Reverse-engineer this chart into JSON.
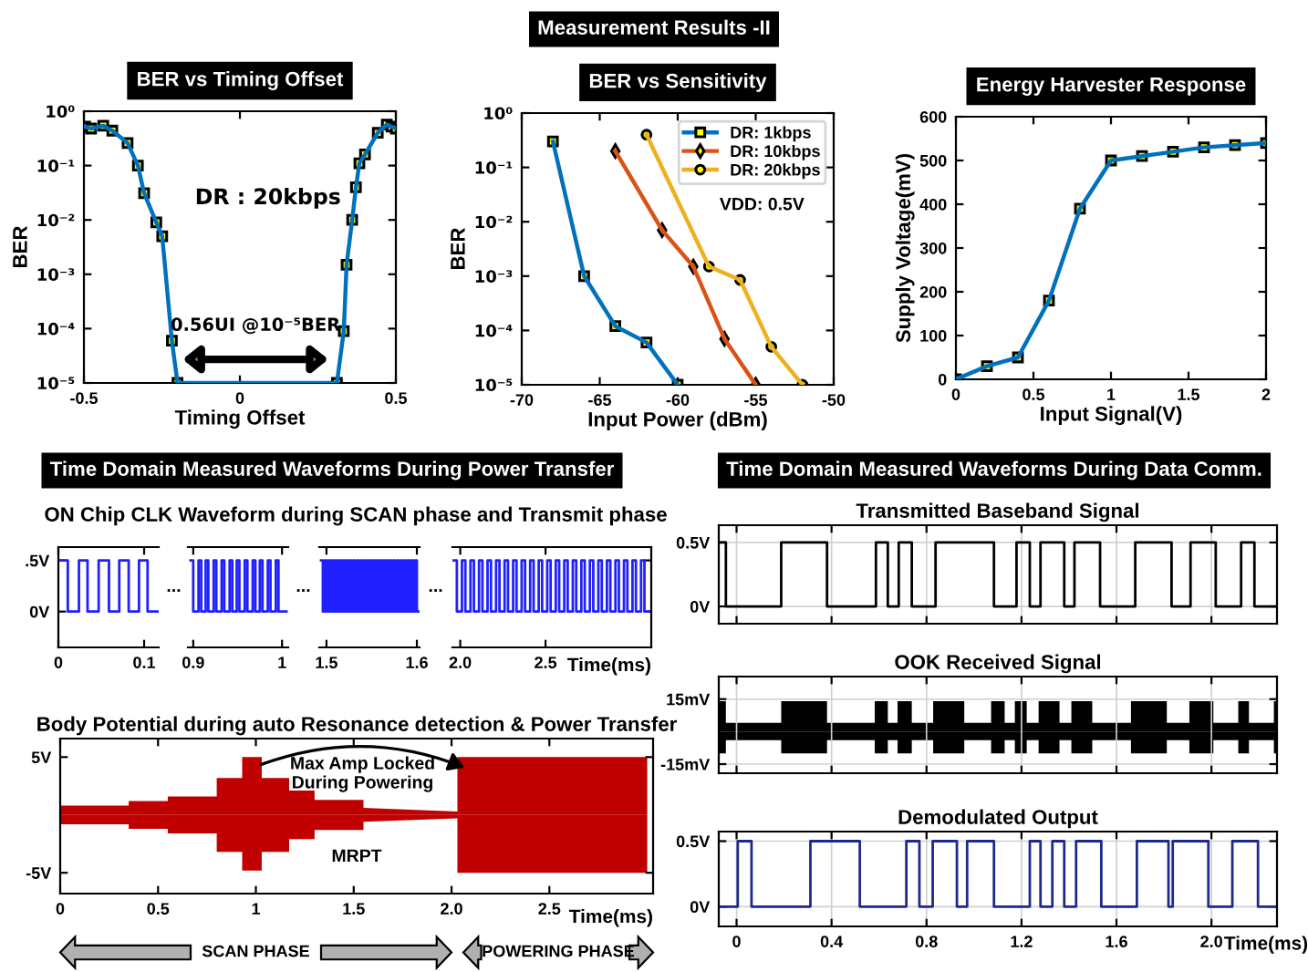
{
  "chart_data": [
    {
      "type": "other",
      "annotations": [
        "Measurement Results -II",
        "Time Domain Measured Waveforms During Power Transfer",
        "Time Domain Measured Waveforms During Data Comm."
      ]
    },
    {
      "type": "line",
      "title": "BER vs Timing Offset",
      "xlabel": "Timing Offset",
      "ylabel": "BER",
      "log": "y",
      "marker": "square",
      "x": [
        -0.496,
        -0.477,
        -0.438,
        -0.409,
        -0.36,
        -0.327,
        -0.307,
        -0.268,
        -0.249,
        -0.218,
        -0.2,
        0.311,
        0.333,
        0.342,
        0.36,
        0.372,
        0.383,
        0.401,
        0.442,
        0.471,
        0.486,
        0.5
      ],
      "series": [
        {
          "color": "#0072bd",
          "values": [
            0.52,
            0.48,
            0.54,
            0.44,
            0.26,
            0.1,
            0.031,
            0.009,
            0.005,
            6e-05,
            1e-05,
            1e-05,
            9e-05,
            0.0015,
            0.01,
            0.04,
            0.11,
            0.16,
            0.4,
            0.57,
            0.52,
            0.48
          ]
        }
      ],
      "xlim": [
        -0.5,
        0.5
      ],
      "xticks": [
        -0.5,
        0,
        0.5
      ],
      "ylim": [
        1e-05,
        1
      ],
      "yticks": [
        {
          "value": 1,
          "label": "10⁰"
        },
        {
          "value": 0.1,
          "label": "10⁻¹"
        },
        {
          "value": 0.01,
          "label": "10⁻²"
        },
        {
          "value": 0.001,
          "label": "10⁻³"
        },
        {
          "value": 0.0001,
          "label": "10⁻⁴"
        },
        {
          "value": 1e-05,
          "label": "10⁻⁵"
        }
      ],
      "annotations": [
        "DR : 20kbps",
        "0.56UI @10⁻⁵BER"
      ]
    },
    {
      "type": "line",
      "title": "BER vs Sensitivity",
      "xlabel": "Input Power (dBm)",
      "ylabel": "BER",
      "log": "y",
      "legend": "top right",
      "series": [
        {
          "name": "DR: 1kbps",
          "color": "#0072bd",
          "marker": "square",
          "x": [
            -68,
            -66,
            -64,
            -62,
            -60
          ],
          "values": [
            0.3,
            0.001,
            0.00012,
            6e-05,
            1e-05
          ]
        },
        {
          "name": "DR: 10kbps",
          "color": "#d95319",
          "marker": "diamond",
          "x": [
            -64,
            -61,
            -59,
            -57,
            -55
          ],
          "values": [
            0.2,
            0.007,
            0.0015,
            7e-05,
            1e-05
          ]
        },
        {
          "name": "DR: 20kbps",
          "color": "#edb120",
          "marker": "circle",
          "x": [
            -62,
            -58,
            -56,
            -54,
            -52
          ],
          "values": [
            0.4,
            0.0015,
            0.00085,
            5e-05,
            1e-05
          ]
        }
      ],
      "xlim": [
        -70,
        -50
      ],
      "xticks": [
        -70,
        -65,
        -60,
        -55,
        -50
      ],
      "ylim": [
        1e-05,
        1
      ],
      "yticks": [
        {
          "value": 1,
          "label": "10⁰"
        },
        {
          "value": 0.1,
          "label": "10⁻¹"
        },
        {
          "value": 0.01,
          "label": "10⁻²"
        },
        {
          "value": 0.001,
          "label": "10⁻³"
        },
        {
          "value": 0.0001,
          "label": "10⁻⁴"
        },
        {
          "value": 1e-05,
          "label": "10⁻⁵"
        }
      ],
      "annotations": [
        "VDD: 0.5V"
      ]
    },
    {
      "type": "line",
      "title": "Energy Harvester Response",
      "xlabel": "Input Signal(V)",
      "ylabel": "Supply Voltage(mV)",
      "marker": "square",
      "x": [
        0,
        0.2,
        0.4,
        0.6,
        0.8,
        1,
        1.2,
        1.4,
        1.6,
        1.8,
        2
      ],
      "series": [
        {
          "color": "#0072bd",
          "values": [
            0,
            30,
            50,
            180,
            390,
            500,
            510,
            520,
            530,
            535,
            540
          ]
        }
      ],
      "xlim": [
        0,
        2
      ],
      "xticks": [
        0,
        0.5,
        1,
        1.5,
        2
      ],
      "ylim": [
        0,
        600
      ],
      "yticks": [
        0,
        100,
        200,
        300,
        400,
        500,
        600
      ]
    },
    {
      "type": "step",
      "title": "ON Chip CLK Waveform during SCAN phase and Transmit phase",
      "x": [
        0,
        0.011,
        0.024,
        0.034,
        0.047,
        0.059,
        0.071,
        0.082,
        0.094,
        0.104,
        0.116
      ],
      "series": [
        {
          "color": "#2020ff",
          "values": [
            0.5,
            0,
            0.5,
            0,
            0.5,
            0,
            0.5,
            0,
            0.5,
            0,
            0
          ]
        }
      ],
      "xlim": [
        0,
        0.117
      ],
      "xticks": [
        0,
        0.1
      ],
      "ylim": [
        -0.35,
        0.63
      ],
      "yticks": [
        {
          "value": 0.5,
          "label": ".5V"
        },
        {
          "value": 0,
          "label": "0V"
        }
      ],
      "annotations": [
        "..."
      ]
    },
    {
      "type": "step",
      "tick_labels": "x",
      "x": [
        0.897,
        0.9,
        0.906,
        0.909,
        0.914,
        0.917,
        0.923,
        0.926,
        0.932,
        0.935,
        0.941,
        0.944,
        0.949,
        0.952,
        0.958,
        0.961,
        0.967,
        0.97,
        0.975,
        0.978,
        0.984,
        0.987,
        0.993,
        0.996,
        1.005
      ],
      "series": [
        {
          "color": "#2020ff",
          "values": [
            0.5,
            0,
            0.5,
            0,
            0.5,
            0,
            0.5,
            0,
            0.5,
            0,
            0.5,
            0,
            0.5,
            0,
            0.5,
            0,
            0.5,
            0,
            0.5,
            0,
            0.5,
            0,
            0.5,
            0,
            0
          ]
        }
      ],
      "xlim": [
        0.894,
        1.007
      ],
      "xticks": [
        0.9,
        1
      ],
      "ylim": [
        -0.35,
        0.63
      ],
      "annotations": [
        "..."
      ]
    },
    {
      "type": "step",
      "tick_labels": "x",
      "x": [
        1.494,
        1.496,
        1.498,
        1.5,
        1.502,
        1.504,
        1.506,
        1.508,
        1.51,
        1.512,
        1.514,
        1.516,
        1.518,
        1.52,
        1.522,
        1.524,
        1.526,
        1.528,
        1.53,
        1.532,
        1.534,
        1.536,
        1.538,
        1.54,
        1.542,
        1.544,
        1.546,
        1.548,
        1.55,
        1.552,
        1.554,
        1.556,
        1.558,
        1.56,
        1.562,
        1.564,
        1.566,
        1.568,
        1.57,
        1.572,
        1.574,
        1.576,
        1.578,
        1.58,
        1.582,
        1.584,
        1.586,
        1.588,
        1.59,
        1.592,
        1.594,
        1.596,
        1.598,
        1.6,
        1.602
      ],
      "series": [
        {
          "color": "#2020ff",
          "values": [
            0.5,
            0,
            0.5,
            0,
            0.5,
            0,
            0.5,
            0,
            0.5,
            0,
            0.5,
            0,
            0.5,
            0,
            0.5,
            0,
            0.5,
            0,
            0.5,
            0,
            0.5,
            0,
            0.5,
            0,
            0.5,
            0,
            0.5,
            0,
            0.5,
            0,
            0.5,
            0,
            0.5,
            0,
            0.5,
            0,
            0.5,
            0,
            0.5,
            0,
            0.5,
            0,
            0.5,
            0,
            0.5,
            0,
            0.5,
            0,
            0.5,
            0,
            0.5,
            0,
            0.5,
            0,
            0
          ]
        }
      ],
      "xlim": [
        1.492,
        1.603
      ],
      "xticks": [
        1.5,
        1.6
      ],
      "ylim": [
        -0.35,
        0.63
      ],
      "annotations": [
        "..."
      ]
    },
    {
      "type": "step",
      "tick_labels": "x",
      "xlabel": "Time(ms)",
      "x": [
        1.96,
        1.98,
        2.01,
        2.03,
        2.06,
        2.08,
        2.11,
        2.13,
        2.16,
        2.18,
        2.21,
        2.23,
        2.26,
        2.28,
        2.31,
        2.33,
        2.36,
        2.38,
        2.41,
        2.43,
        2.46,
        2.48,
        2.51,
        2.53,
        2.56,
        2.58,
        2.61,
        2.63,
        2.66,
        2.68,
        2.71,
        2.73,
        2.76,
        2.78,
        2.81,
        2.83,
        2.86,
        2.88,
        2.91,
        2.93,
        2.96,
        2.98,
        3.01,
        3.03,
        3.06,
        3.08,
        3.11
      ],
      "series": [
        {
          "color": "#2020ff",
          "values": [
            0.5,
            0,
            0.5,
            0,
            0.5,
            0,
            0.5,
            0,
            0.5,
            0,
            0.5,
            0,
            0.5,
            0,
            0.5,
            0,
            0.5,
            0,
            0.5,
            0,
            0.5,
            0,
            0.5,
            0,
            0.5,
            0,
            0.5,
            0,
            0.5,
            0,
            0.5,
            0,
            0.5,
            0,
            0.5,
            0,
            0.5,
            0,
            0.5,
            0,
            0.5,
            0,
            0.5,
            0,
            0.5,
            0,
            0
          ]
        }
      ],
      "xlim": [
        1.954,
        3.12
      ],
      "xticks": [
        {
          "value": 2,
          "label": "2.0"
        },
        2.5
      ],
      "ylim": [
        -0.35,
        0.63
      ]
    },
    {
      "type": "area",
      "title": "Body Potential during auto Resonance detection & Power Transfer",
      "xlabel": "Time(ms)",
      "x": [
        0,
        0.35,
        0.35,
        0.55,
        0.55,
        0.8,
        0.8,
        0.93,
        0.93,
        1.03,
        1.03,
        1.17,
        1.17,
        1.3,
        1.3,
        1.55,
        1.55,
        2.03,
        2.03,
        3.0
      ],
      "series": [
        {
          "color": "#c00000",
          "values": [
            0.8,
            0.8,
            1.2,
            1.2,
            1.6,
            1.6,
            3.2,
            3.2,
            5.0,
            5.0,
            3.2,
            3.2,
            2.1,
            2.1,
            1.3,
            1.3,
            0.6,
            0.3,
            5.0,
            5.0
          ]
        },
        {
          "color": "#c00000",
          "values": [
            -0.8,
            -0.8,
            -1.2,
            -1.2,
            -1.6,
            -1.6,
            -3.2,
            -3.2,
            -4.8,
            -4.8,
            -3.2,
            -3.2,
            -2.1,
            -2.1,
            -1.3,
            -1.3,
            -0.6,
            -0.3,
            -5.0,
            -5.0
          ]
        }
      ],
      "xlim": [
        0,
        3.03
      ],
      "xticks": [
        0,
        0.5,
        1,
        1.5,
        {
          "value": 2,
          "label": "2.0"
        },
        2.5
      ],
      "ylim": [
        -6.8,
        6.6
      ],
      "yticks": [
        {
          "value": 5,
          "label": "5V"
        },
        {
          "value": -5,
          "label": "-5V"
        }
      ],
      "annotations": [
        "Max Amp Locked\nDuring Powering",
        "MRPT",
        "SCAN PHASE",
        "POWERING PHASE"
      ]
    },
    {
      "type": "step",
      "title": "Transmitted Baseband Signal",
      "tick_labels": "y",
      "grid": true,
      "x": [
        -0.075,
        -0.045,
        0.188,
        0.381,
        0.587,
        0.637,
        0.683,
        0.738,
        0.838,
        1.084,
        1.179,
        1.235,
        1.28,
        1.38,
        1.423,
        1.531,
        1.679,
        1.832,
        1.912,
        2.018,
        2.125,
        2.181,
        2.276
      ],
      "series": [
        {
          "color": "#000000",
          "values": [
            0.5,
            0,
            0.5,
            0,
            0.5,
            0,
            0.5,
            0,
            0.5,
            0,
            0.5,
            0,
            0.5,
            0,
            0.5,
            0,
            0.5,
            0,
            0.5,
            0,
            0.5,
            0,
            0
          ]
        }
      ],
      "xlim": [
        -0.075,
        2.276
      ],
      "xticks": [
        {
          "value": 0,
          "label": null
        },
        {
          "value": 0.4,
          "label": null
        },
        {
          "value": 0.8,
          "label": null
        },
        {
          "value": 1.2,
          "label": null
        },
        {
          "value": 1.6,
          "label": null
        },
        {
          "value": 2,
          "label": null
        }
      ],
      "ylim": [
        -0.135,
        0.635
      ],
      "yticks": [
        {
          "value": 0.5,
          "label": "0.5V"
        },
        {
          "value": 0,
          "label": "0V"
        }
      ]
    },
    {
      "type": "area",
      "title": "OOK Received Signal",
      "tick_labels": "y",
      "grid": true,
      "x": [
        -0.075,
        -0.045,
        -0.045,
        0.188,
        0.188,
        0.381,
        0.381,
        0.582,
        0.582,
        0.637,
        0.637,
        0.678,
        0.678,
        0.738,
        0.738,
        0.828,
        0.828,
        0.959,
        0.959,
        1.072,
        1.072,
        1.129,
        1.129,
        1.172,
        1.172,
        1.222,
        1.222,
        1.272,
        1.272,
        1.36,
        1.36,
        1.41,
        1.41,
        1.498,
        1.498,
        1.661,
        1.661,
        1.812,
        1.812,
        1.907,
        1.907,
        2.008,
        2.008,
        2.113,
        2.113,
        2.158,
        2.158,
        2.263,
        2.263,
        2.276
      ],
      "series": [
        {
          "color": "#000000",
          "values": [
            14,
            14,
            4,
            4,
            14,
            14,
            4,
            4,
            14,
            14,
            4,
            4,
            14,
            14,
            4,
            4,
            14,
            14,
            4,
            4,
            14,
            14,
            4,
            4,
            14,
            14,
            4,
            4,
            14,
            14,
            4,
            4,
            14,
            14,
            4,
            4,
            14,
            14,
            4,
            4,
            14,
            14,
            4,
            4,
            14,
            14,
            4,
            4,
            14,
            14
          ]
        },
        {
          "color": "#000000",
          "values": [
            -10,
            -10,
            -4,
            -4,
            -10,
            -10,
            -4,
            -4,
            -10,
            -10,
            -4,
            -4,
            -10,
            -10,
            -4,
            -4,
            -10,
            -10,
            -4,
            -4,
            -10,
            -10,
            -4,
            -4,
            -10,
            -10,
            -4,
            -4,
            -10,
            -10,
            -4,
            -4,
            -10,
            -10,
            -4,
            -4,
            -10,
            -10,
            -4,
            -4,
            -10,
            -10,
            -4,
            -4,
            -10,
            -10,
            -4,
            -4,
            -10,
            -10
          ]
        }
      ],
      "xlim": [
        -0.075,
        2.276
      ],
      "xticks": [
        {
          "value": 0,
          "label": null
        },
        {
          "value": 0.4,
          "label": null
        },
        {
          "value": 0.8,
          "label": null
        },
        {
          "value": 1.2,
          "label": null
        },
        {
          "value": 1.6,
          "label": null
        },
        {
          "value": 2,
          "label": null
        }
      ],
      "ylim": [
        -19.2,
        25.4
      ],
      "yticks": [
        {
          "value": 15,
          "label": "15mV"
        },
        {
          "value": -15,
          "label": "-15mV"
        }
      ]
    },
    {
      "type": "step",
      "title": "Demodulated Output",
      "xlabel": "Time(ms)",
      "grid": true,
      "x": [
        -0.075,
        0.005,
        0.063,
        0.311,
        0.519,
        0.715,
        0.77,
        0.826,
        0.928,
        0.971,
        1.084,
        1.235,
        1.28,
        1.33,
        1.38,
        1.43,
        1.536,
        1.686,
        1.819,
        1.837,
        1.987,
        2.088,
        2.196,
        2.276
      ],
      "series": [
        {
          "color": "#1c2a8c",
          "values": [
            0,
            0.5,
            0,
            0.5,
            0,
            0.5,
            0,
            0.5,
            0,
            0.5,
            0,
            0.5,
            0,
            0.5,
            0,
            0.5,
            0,
            0.5,
            0,
            0.5,
            0,
            0.5,
            0,
            0
          ]
        }
      ],
      "xlim": [
        -0.075,
        2.276
      ],
      "xticks": [
        0,
        0.4,
        0.8,
        1.2,
        1.6,
        {
          "value": 2,
          "label": "2.0"
        }
      ],
      "ylim": [
        -0.151,
        0.573
      ],
      "yticks": [
        {
          "value": 0.5,
          "label": "0.5V"
        },
        {
          "value": 0,
          "label": "0V"
        }
      ]
    }
  ]
}
